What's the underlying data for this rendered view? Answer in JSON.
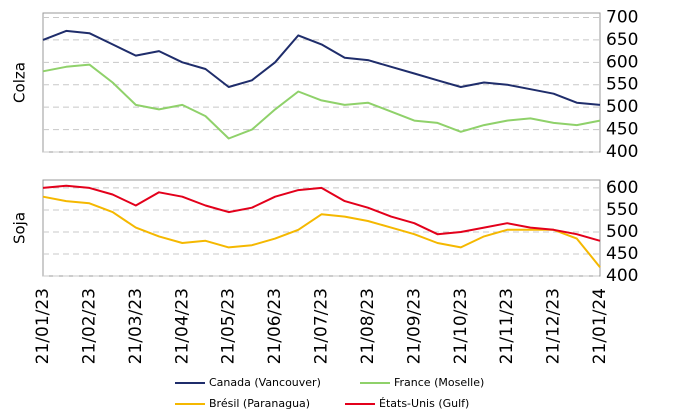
{
  "chart_data": [
    {
      "type": "line",
      "title": "Colza",
      "ylim": [
        400,
        710
      ],
      "yticks": [
        400,
        450,
        500,
        550,
        600,
        650,
        700
      ],
      "grid": true,
      "series": [
        {
          "name": "Canada (Vancouver)",
          "color": "#1f2d6b",
          "values": [
            650,
            670,
            665,
            640,
            615,
            625,
            600,
            585,
            545,
            560,
            600,
            660,
            640,
            610,
            605,
            590,
            575,
            560,
            545,
            555,
            550,
            540,
            530,
            510,
            505
          ]
        },
        {
          "name": "France (Moselle)",
          "color": "#8fd16a",
          "values": [
            580,
            590,
            595,
            555,
            505,
            495,
            505,
            480,
            430,
            450,
            495,
            535,
            515,
            505,
            510,
            490,
            470,
            465,
            445,
            460,
            470,
            475,
            465,
            460,
            470
          ]
        }
      ]
    },
    {
      "type": "line",
      "title": "Soja",
      "ylim": [
        400,
        618
      ],
      "yticks": [
        400,
        450,
        500,
        550,
        600
      ],
      "grid": true,
      "categories": [
        "21/01/23",
        null,
        "21/02/23",
        null,
        "21/03/23",
        null,
        "21/04/23",
        null,
        "21/05/23",
        null,
        "21/06/23",
        null,
        "21/07/23",
        null,
        "21/08/23",
        null,
        "21/09/23",
        null,
        "21/10/23",
        null,
        "21/11/23",
        null,
        "21/12/23",
        null,
        "21/01/24"
      ],
      "series": [
        {
          "name": "Brésil (Paranagua)",
          "color": "#f5b800",
          "values": [
            580,
            570,
            565,
            545,
            510,
            490,
            475,
            480,
            465,
            470,
            485,
            505,
            540,
            535,
            525,
            510,
            495,
            475,
            465,
            490,
            505,
            505,
            505,
            485,
            420
          ]
        },
        {
          "name": "États-Unis (Gulf)",
          "color": "#e3001b",
          "values": [
            600,
            605,
            600,
            585,
            560,
            590,
            580,
            560,
            545,
            555,
            580,
            595,
            600,
            570,
            555,
            535,
            520,
            495,
            500,
            510,
            520,
            510,
            505,
            495,
            480
          ]
        }
      ]
    }
  ]
}
